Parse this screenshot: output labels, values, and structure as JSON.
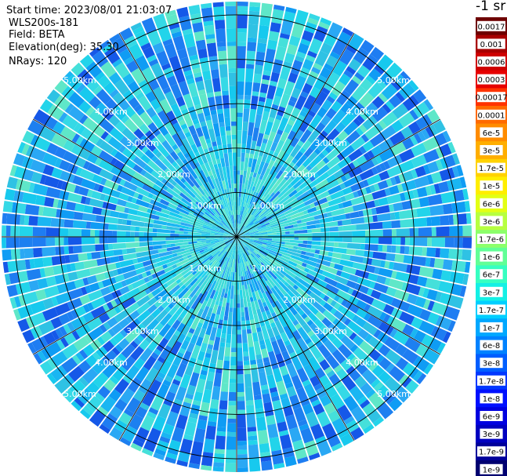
{
  "header": {
    "start_time": "Start time: 2023/08/01 21:03:07",
    "instrument": "WLS200s-181",
    "field": "Field: BETA",
    "elevation": "Elevation(deg): 35.30",
    "nrays": "NRays: 120"
  },
  "colorbar": {
    "title": "-1 sr",
    "labels": [
      "0.0017",
      "0.001",
      "0.0006",
      "0.0003",
      "0.00017",
      "0.0001",
      "6e-5",
      "3e-5",
      "1.7e-5",
      "1e-5",
      "6e-6",
      "3e-6",
      "1.7e-6",
      "1e-6",
      "6e-7",
      "3e-7",
      "1.7e-7",
      "1e-7",
      "6e-8",
      "3e-8",
      "1.7e-8",
      "1e-8",
      "6e-9",
      "3e-9",
      "1.7e-9",
      "1e-9"
    ],
    "colors": [
      "#6e0000",
      "#a80000",
      "#cf0000",
      "#e60000",
      "#ff3300",
      "#ff6a00",
      "#ff8c00",
      "#ffae00",
      "#ffd200",
      "#ffee00",
      "#e3ff14",
      "#b7ff40",
      "#8cff6b",
      "#61ff96",
      "#36ffc1",
      "#14f0e5",
      "#00cfff",
      "#00a8ff",
      "#0082ff",
      "#005eff",
      "#0038ff",
      "#0010ff",
      "#0000e0",
      "#0000c0",
      "#00009a",
      "#000070"
    ]
  },
  "chart_data": {
    "type": "heatmap",
    "projection": "polar (PPI)",
    "field": "BETA",
    "elevation_deg": 35.3,
    "nrays": 120,
    "range_unit": "km",
    "max_range_km": 5.3,
    "range_rings_km": [
      1,
      2,
      3,
      4,
      5
    ],
    "ring_labels": [
      "1.00km",
      "2.00km",
      "3.00km",
      "4.00km",
      "5.00km"
    ],
    "spokes_deg": [
      0,
      30,
      60,
      90,
      120,
      150,
      180,
      210,
      240,
      270,
      300,
      330
    ],
    "dominant_value_range": [
      "1e-8",
      "1e-7"
    ],
    "colorbar_units": "-1 sr"
  }
}
